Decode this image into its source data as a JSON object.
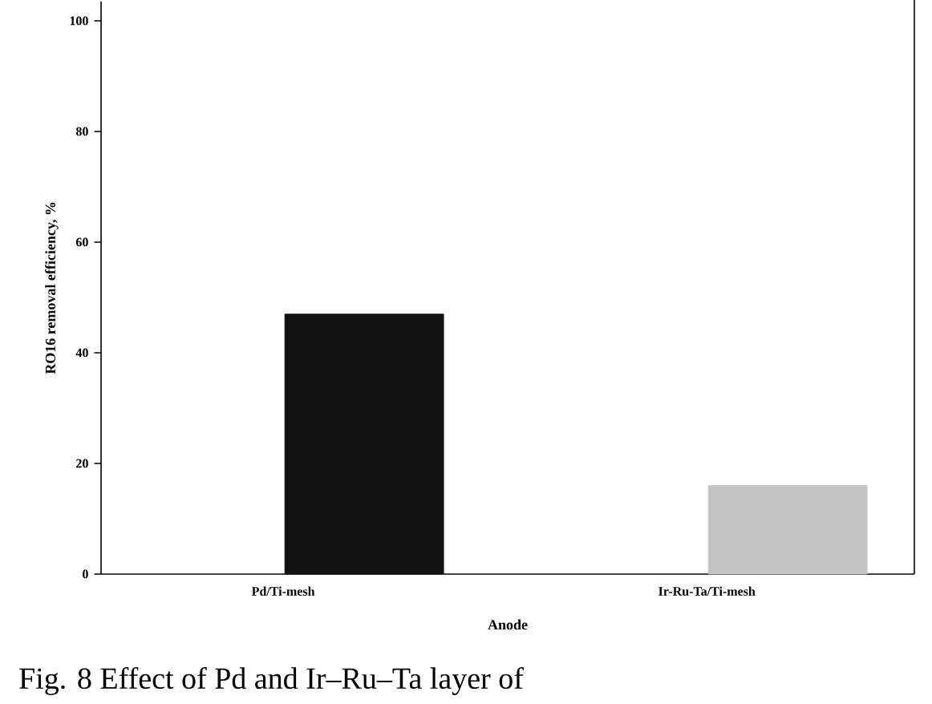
{
  "chart_data": {
    "type": "bar",
    "xlabel": "Anode",
    "ylabel": "RO16 removal efficiency, %",
    "categories": [
      "Pd/Ti-mesh",
      "Ir-Ru-Ta/Ti-mesh"
    ],
    "values": [
      47,
      16
    ],
    "colors": [
      "#111111",
      "#c4c4c4"
    ],
    "ylim": [
      0,
      103.5
    ],
    "yticks": [
      0,
      20,
      40,
      60,
      80,
      100
    ],
    "annotations": [
      "Fig. 8 Effect of Pd and Ir–Ru–Ta layer of"
    ]
  }
}
